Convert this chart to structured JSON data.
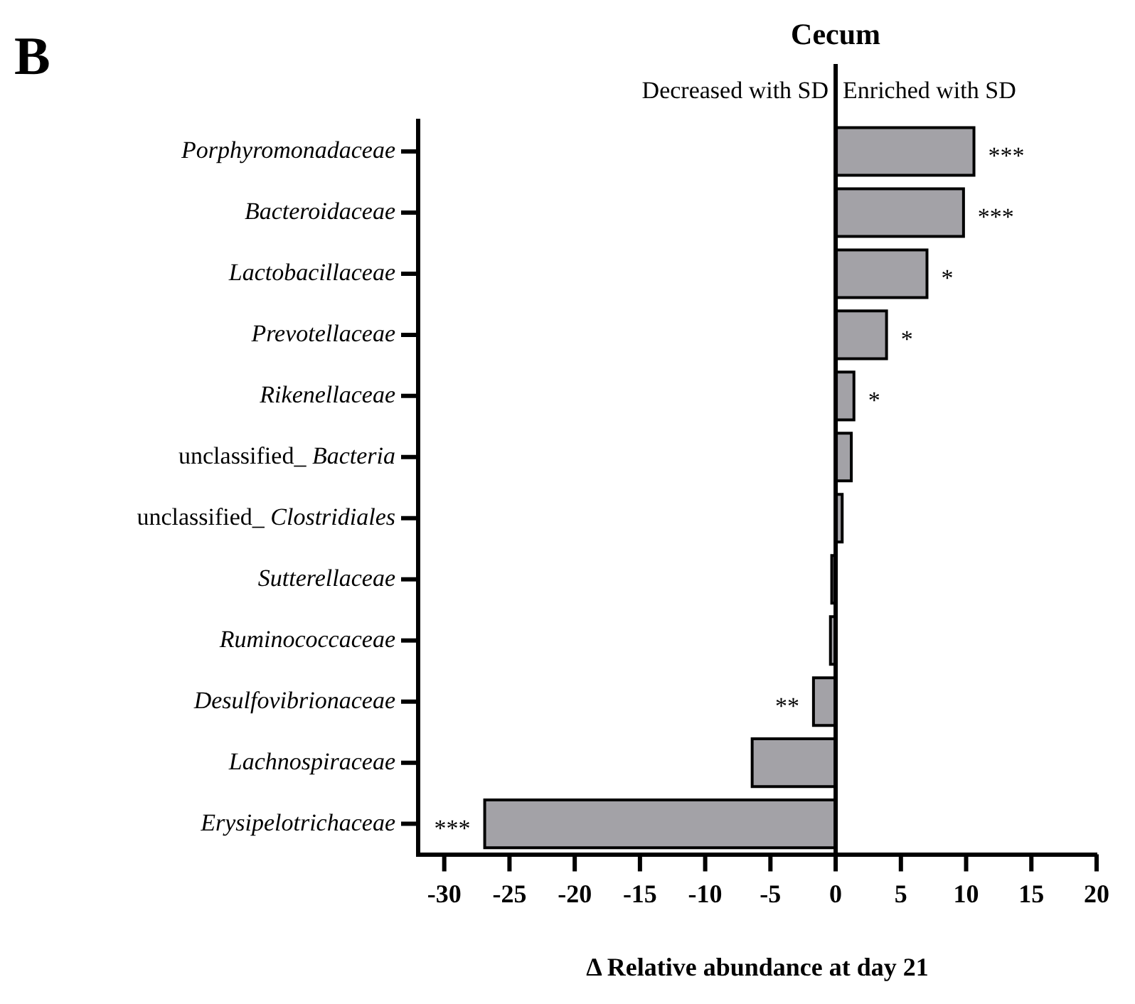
{
  "chart_data": {
    "type": "bar",
    "orientation": "horizontal",
    "title": "Cecum",
    "xlabel": "Δ Relative abundance at day 21",
    "categories": [
      "Porphyromonadaceae",
      "Bacteroidaceae",
      "Lactobacillaceae",
      "Prevotellaceae",
      "Rikenellaceae",
      "unclassified_ Bacteria",
      "unclassified_ Clostridiales",
      "Sutterellaceae",
      "Ruminococcaceae",
      "Desulfovibrionaceae",
      "Lachnospiraceae",
      "Erysipelotrichaceae"
    ],
    "values": [
      10.6,
      9.8,
      7.0,
      3.9,
      1.4,
      1.2,
      0.5,
      -0.3,
      -0.4,
      -1.7,
      -6.4,
      -26.9
    ],
    "color": "#a3a2a7",
    "xlim": [
      -32,
      20
    ],
    "xticks": [
      -30,
      -25,
      -20,
      -15,
      -10,
      -5,
      0,
      5,
      10,
      15,
      20
    ],
    "grid": false,
    "legend": false,
    "ref_lines": [
      {
        "axis": "x",
        "value": 0,
        "color": "#000000"
      }
    ],
    "annotations": [
      "B",
      "Decreased with SD",
      "Enriched with SD",
      {
        "text": "***",
        "x": 10.6,
        "y": "Porphyromonadaceae"
      },
      {
        "text": "***",
        "x": 9.8,
        "y": "Bacteroidaceae"
      },
      {
        "text": "*",
        "x": 7.0,
        "y": "Lactobacillaceae"
      },
      {
        "text": "*",
        "x": 3.9,
        "y": "Prevotellaceae"
      },
      {
        "text": "*",
        "x": 1.4,
        "y": "Rikenellaceae"
      },
      {
        "text": "**",
        "x": -1.7,
        "y": "Desulfovibrionaceae"
      },
      {
        "text": "***",
        "x": -26.9,
        "y": "Erysipelotrichaceae"
      }
    ]
  }
}
